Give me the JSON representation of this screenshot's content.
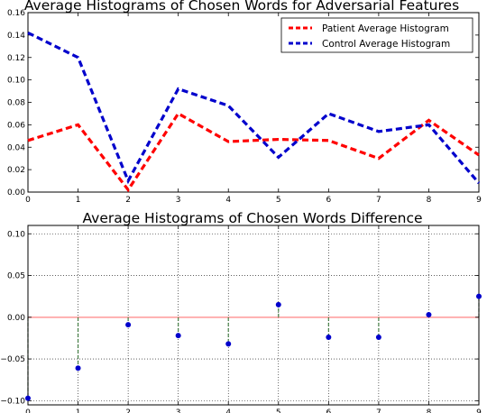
{
  "chart_data": [
    {
      "type": "line",
      "title": "Average Histograms of Chosen Words for Adversarial Features",
      "xlabel": "",
      "ylabel": "",
      "x": [
        0,
        1,
        2,
        3,
        4,
        5,
        6,
        7,
        8,
        9
      ],
      "xlim": [
        0,
        9
      ],
      "ylim": [
        0,
        0.16
      ],
      "x_ticks": [
        "0",
        "1",
        "2",
        "3",
        "4",
        "5",
        "6",
        "7",
        "8",
        "9"
      ],
      "y_ticks": [
        "0.00",
        "0.02",
        "0.04",
        "0.06",
        "0.08",
        "0.10",
        "0.12",
        "0.14",
        "0.16"
      ],
      "grid": false,
      "legend_position": "top-right",
      "series": [
        {
          "name": "Patient Average Histogram",
          "color": "#ff0000",
          "style": "dashed",
          "values": [
            0.046,
            0.06,
            0.002,
            0.07,
            0.045,
            0.047,
            0.046,
            0.03,
            0.064,
            0.033
          ]
        },
        {
          "name": "Control Average Histogram",
          "color": "#0000cc",
          "style": "dashed",
          "values": [
            0.142,
            0.12,
            0.01,
            0.092,
            0.077,
            0.031,
            0.07,
            0.054,
            0.06,
            0.008
          ]
        }
      ]
    },
    {
      "type": "scatter",
      "title": "Average Histograms of Chosen Words Difference",
      "xlabel": "",
      "ylabel": "",
      "x": [
        0,
        1,
        2,
        3,
        4,
        5,
        6,
        7,
        8,
        9
      ],
      "xlim": [
        0,
        9
      ],
      "ylim": [
        -0.105,
        0.11
      ],
      "x_ticks": [
        "0",
        "1",
        "2",
        "3",
        "4",
        "5",
        "6",
        "7",
        "8",
        "9"
      ],
      "y_ticks": [
        "−0.10",
        "−0.05",
        "0.00",
        "0.05",
        "0.10"
      ],
      "grid": true,
      "baseline": 0,
      "series": [
        {
          "color": "#0000cc",
          "values": [
            -0.097,
            -0.061,
            -0.009,
            -0.022,
            -0.032,
            0.015,
            -0.024,
            -0.024,
            0.003,
            0.025
          ]
        }
      ]
    }
  ]
}
